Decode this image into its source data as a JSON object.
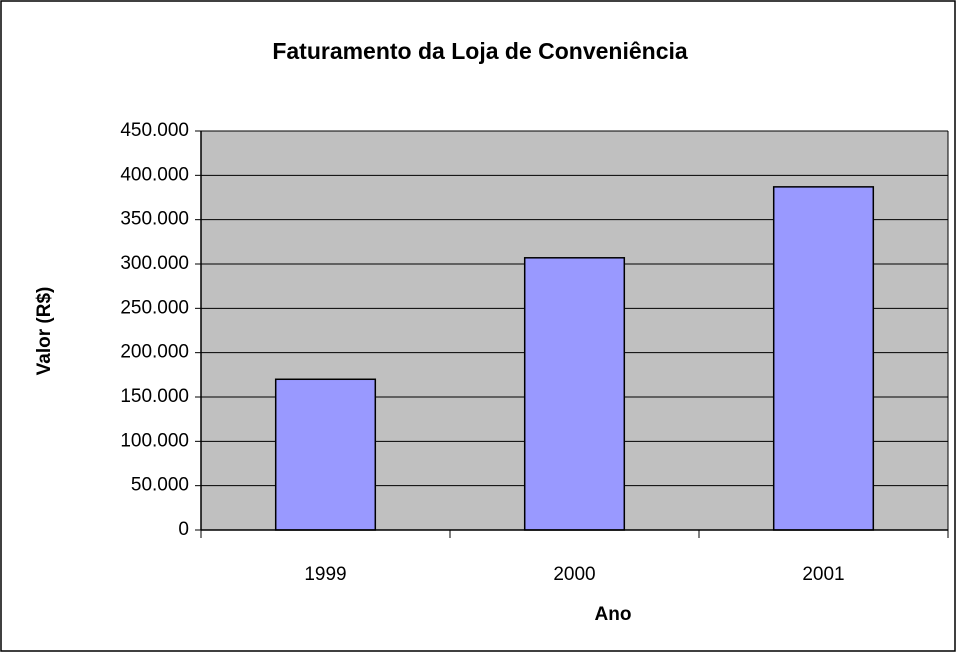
{
  "chart_data": {
    "type": "bar",
    "title": "Faturamento da Loja de Conveniência",
    "x_label": "Ano",
    "y_label": "Valor (R$)",
    "categories": [
      "1999",
      "2000",
      "2001"
    ],
    "values": [
      170000,
      307000,
      387000
    ],
    "color": "#9999ff",
    "plot_background": "#c0c0c0",
    "ylim": [
      0,
      450000
    ],
    "yticks": [
      0,
      {
        "value": 50000,
        "label": "50.000"
      },
      {
        "value": 100000,
        "label": "100.000"
      },
      {
        "value": 150000,
        "label": "150.000"
      },
      {
        "value": 200000,
        "label": "200.000"
      },
      {
        "value": 250000,
        "label": "250.000"
      },
      {
        "value": 300000,
        "label": "300.000"
      },
      {
        "value": 350000,
        "label": "350.000"
      },
      {
        "value": 400000,
        "label": "400.000"
      },
      {
        "value": 450000,
        "label": "450.000"
      }
    ],
    "grid": true
  }
}
